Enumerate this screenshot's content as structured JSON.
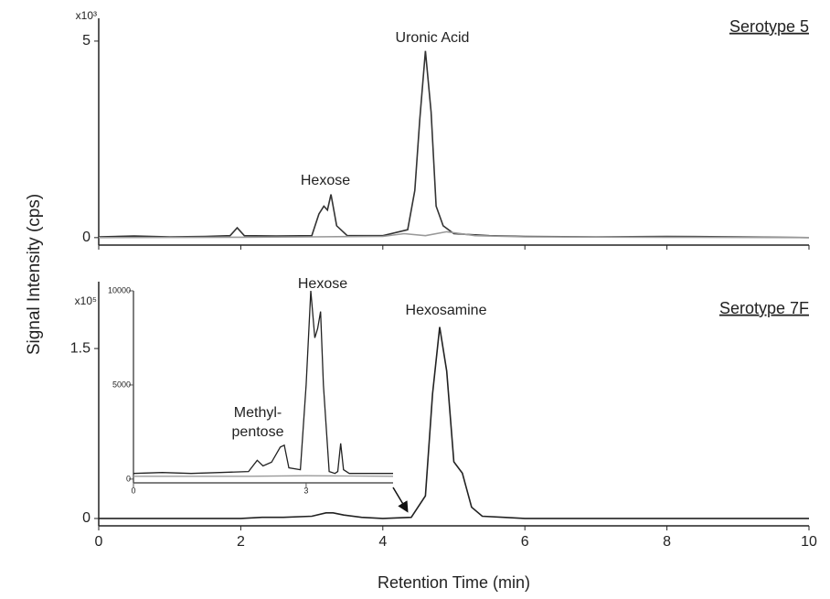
{
  "chart_data": [
    {
      "type": "line",
      "title": "Serotype 5",
      "y_label": "Signal Intensity (cps)",
      "y_scale_label": "x10³",
      "xlim": [
        0,
        10
      ],
      "xticks": [
        0,
        2,
        4,
        6,
        8,
        10
      ],
      "ylim": [
        -0.19,
        5.58
      ],
      "yticks": [
        0,
        5
      ],
      "annotations": [
        "Hexose",
        "Uronic Acid"
      ],
      "series": [
        {
          "color": "#333333",
          "x": [
            0,
            0.5,
            1,
            1.5,
            1.85,
            1.95,
            2.05,
            2.5,
            3.0,
            3.1,
            3.17,
            3.22,
            3.27,
            3.35,
            3.5,
            4.0,
            4.35,
            4.45,
            4.52,
            4.6,
            4.68,
            4.75,
            4.85,
            5.0,
            5.5,
            6,
            7,
            8,
            9,
            10
          ],
          "values": [
            0.02,
            0.04,
            0.02,
            0.03,
            0.05,
            0.25,
            0.05,
            0.04,
            0.05,
            0.6,
            0.8,
            0.7,
            1.1,
            0.3,
            0.05,
            0.05,
            0.2,
            1.2,
            3.0,
            4.75,
            3.2,
            0.8,
            0.3,
            0.1,
            0.05,
            0.03,
            0.02,
            0.03,
            0.02,
            0.0
          ]
        },
        {
          "color": "#999999",
          "x": [
            0,
            2,
            3,
            4,
            4.3,
            4.6,
            4.9,
            5.3,
            6,
            8,
            10
          ],
          "values": [
            0,
            0.01,
            0.02,
            0.03,
            0.1,
            0.05,
            0.15,
            0.05,
            0.02,
            0.01,
            0
          ]
        }
      ]
    },
    {
      "type": "line",
      "title": "Serotype 7F",
      "x_label": "Retention Time (min)",
      "y_scale_label": "x10⁵",
      "xlim": [
        0,
        10
      ],
      "xticks": [
        0,
        2,
        4,
        6,
        8,
        10
      ],
      "ylim": [
        -0.065,
        2.09
      ],
      "yticks": [
        0,
        1.5
      ],
      "annotations": [
        "Hexose",
        "Hexosamine",
        "Methyl-",
        "pentose"
      ],
      "series": [
        {
          "color": "#222222",
          "x": [
            0,
            2,
            2.3,
            2.6,
            3.0,
            3.2,
            3.3,
            3.45,
            3.7,
            4.0,
            4.4,
            4.6,
            4.7,
            4.8,
            4.9,
            5.0,
            5.12,
            5.25,
            5.4,
            5.7,
            6,
            7,
            8,
            10
          ],
          "values": [
            0,
            0,
            0.01,
            0.01,
            0.02,
            0.05,
            0.05,
            0.03,
            0.01,
            0,
            0.01,
            0.2,
            1.1,
            1.69,
            1.3,
            0.5,
            0.4,
            0.1,
            0.02,
            0.01,
            0,
            0,
            0,
            0
          ]
        }
      ]
    },
    {
      "type": "line",
      "xlim": [
        0,
        4.51
      ],
      "xticks": [
        0,
        3
      ],
      "ylim": [
        -200,
        10000
      ],
      "yticks": [
        0,
        5000,
        10000
      ],
      "series": [
        {
          "color": "#999999",
          "x": [
            0,
            2,
            3,
            4.51
          ],
          "values": [
            150,
            150,
            180,
            150
          ]
        },
        {
          "color": "#222222",
          "x": [
            0,
            0.5,
            1,
            1.5,
            2.0,
            2.15,
            2.25,
            2.4,
            2.55,
            2.62,
            2.7,
            2.9,
            3.0,
            3.08,
            3.15,
            3.2,
            3.25,
            3.3,
            3.4,
            3.5,
            3.55,
            3.6,
            3.65,
            3.75,
            4.0,
            4.51
          ],
          "values": [
            300,
            350,
            300,
            350,
            400,
            1000,
            700,
            900,
            1700,
            1800,
            600,
            500,
            5000,
            10000,
            7500,
            8000,
            8900,
            5000,
            400,
            300,
            400,
            1900,
            500,
            300,
            300,
            300
          ]
        }
      ]
    }
  ]
}
